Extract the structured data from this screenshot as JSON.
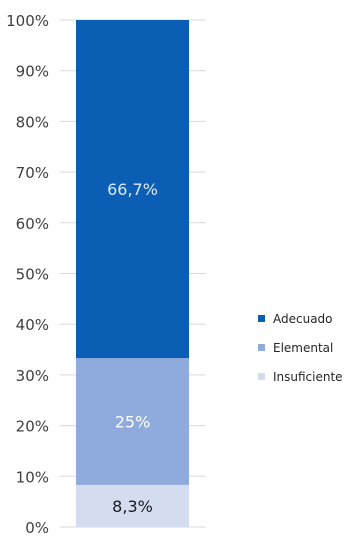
{
  "chart_data": {
    "type": "bar",
    "stacked": true,
    "percent": true,
    "categories": [
      ""
    ],
    "series": [
      {
        "name": "Insuficiente",
        "values": [
          8.3
        ],
        "label": "8,3%",
        "color": "#d4ddf0",
        "label_color": "#1a1a1a"
      },
      {
        "name": "Elemental",
        "values": [
          25
        ],
        "label": "25%",
        "color": "#8faadc",
        "label_color": "#ffffff"
      },
      {
        "name": "Adecuado",
        "values": [
          66.7
        ],
        "label": "66,7%",
        "color": "#0a5eb4",
        "label_color": "#dce8f7"
      }
    ],
    "ylim": [
      0,
      100
    ],
    "yticks": [
      0,
      10,
      20,
      30,
      40,
      50,
      60,
      70,
      80,
      90,
      100
    ],
    "ytick_labels": [
      "0%",
      "10%",
      "20%",
      "30%",
      "40%",
      "50%",
      "60%",
      "70%",
      "80%",
      "90%",
      "100%"
    ],
    "grid": true,
    "legend": {
      "position": "right",
      "order": [
        "Adecuado",
        "Elemental",
        "Insuficiente"
      ]
    },
    "title": "",
    "xlabel": "",
    "ylabel": ""
  }
}
